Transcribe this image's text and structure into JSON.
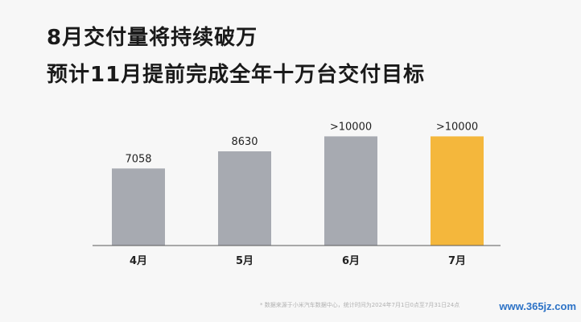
{
  "header": {
    "title_line1": "8月交付量将持续破万",
    "title_line2": "预计11月提前完成全年十万台交付目标"
  },
  "footnote": "* 数据来源于小米汽车数据中心，统计时间为2024年7月1日0点至7月31日24点",
  "watermark": "www.365jz.com",
  "colors": {
    "bar_default": "#a7aab1",
    "bar_highlight": "#f4b73c",
    "baseline": "#5a5a5a",
    "label_text": "#222222"
  },
  "chart_data": {
    "type": "bar",
    "categories": [
      "4月",
      "5月",
      "6月",
      "7月"
    ],
    "values": [
      7058,
      8630,
      10000,
      10000
    ],
    "value_labels": [
      "7058",
      "8630",
      ">10000",
      ">10000"
    ],
    "highlight": [
      false,
      false,
      false,
      true
    ],
    "ylim": [
      0,
      11800
    ],
    "title": "",
    "xlabel": "",
    "ylabel": "",
    "grid": false,
    "legend": "none"
  }
}
